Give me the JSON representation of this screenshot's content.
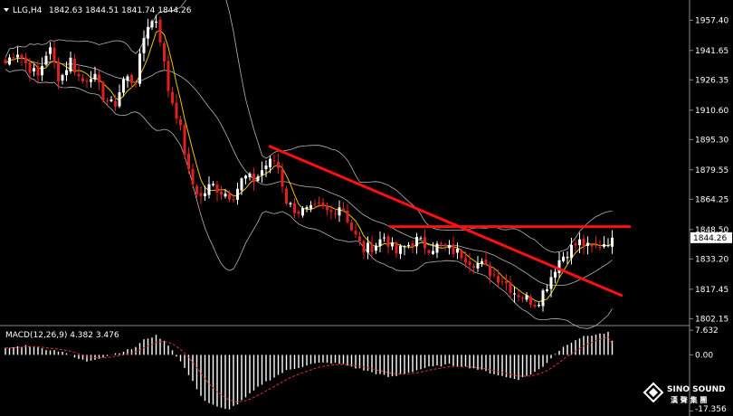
{
  "header": {
    "symbol": "LLG,H4",
    "ohlc": "1842.63 1844.51 1841.74 1844.26"
  },
  "macd_header": "MACD(12,26,9) 4.382 3.476",
  "watermark": {
    "line1": "SINO SOUND",
    "line2": "漢 聲 集 團"
  },
  "colors": {
    "background": "#000000",
    "bull_candle": "#ffffff",
    "bear_candle": "#e02020",
    "bollinger": "#b4b4b4",
    "moving_average": "#e6c800",
    "trendline": "#ff1010",
    "macd_hist": "#ffffff",
    "macd_signal": "#e03030",
    "price_tag_bg": "#ffffff"
  },
  "chart_data": [
    {
      "type": "candlestick",
      "timeframe": "H4",
      "y_ticks": [
        1957.4,
        1941.65,
        1926.35,
        1910.6,
        1895.3,
        1879.55,
        1864.25,
        1848.5,
        1833.2,
        1817.45,
        1802.15
      ],
      "y_tick_labels": [
        "1957.40",
        "1941.65",
        "1926.35",
        "1910.60",
        "1895.30",
        "1879.55",
        "1864.25",
        "1848.50",
        "1833.20",
        "1817.45",
        "1802.15"
      ],
      "ylim": [
        1799.5,
        1966.0
      ],
      "current_price": "1844.26",
      "close_path": [
        1935,
        1942,
        1934,
        1928,
        1944,
        1926,
        1937,
        1925,
        1930,
        1918,
        1912,
        1928,
        1925,
        1955,
        1958,
        1922,
        1905,
        1875,
        1865,
        1872,
        1868,
        1866,
        1876,
        1874,
        1882,
        1885,
        1862,
        1858,
        1858,
        1860,
        1857,
        1862,
        1848,
        1838,
        1840,
        1845,
        1836,
        1840,
        1843,
        1839,
        1840,
        1838,
        1836,
        1832,
        1830,
        1825,
        1822,
        1816,
        1813,
        1810,
        1820,
        1832,
        1838,
        1842,
        1838,
        1841,
        1844
      ],
      "trendlines": [
        {
          "from": [
            297,
            1892
          ],
          "to": [
            688,
            1814
          ],
          "note": "descending resistance"
        },
        {
          "from": [
            430,
            1850
          ],
          "to": [
            697,
            1850
          ],
          "note": "horizontal resistance"
        }
      ]
    },
    {
      "type": "bar",
      "name": "MACD(12,26,9)",
      "main_value": 4.382,
      "signal_value": 3.476,
      "y_ticks": [
        7.632,
        0.0,
        -17.356
      ],
      "y_tick_labels": [
        "7.632",
        "0.00",
        "-17.356"
      ],
      "ylim": [
        -17.8,
        8.5
      ],
      "hist_path": [
        2,
        2.5,
        3,
        2,
        1.5,
        1,
        -1,
        -2,
        -1,
        0,
        1,
        2,
        5,
        6,
        3,
        -2,
        -8,
        -14,
        -16,
        -17,
        -15,
        -12,
        -9,
        -7,
        -5,
        -4,
        -3,
        -2.5,
        -2.5,
        -3,
        -4,
        -5,
        -6,
        -7,
        -6,
        -5,
        -4,
        -3.5,
        -3,
        -3.5,
        -4,
        -5,
        -6,
        -7,
        -7.5,
        -6,
        -4,
        0,
        3,
        5,
        6,
        6.5,
        7
      ]
    }
  ]
}
